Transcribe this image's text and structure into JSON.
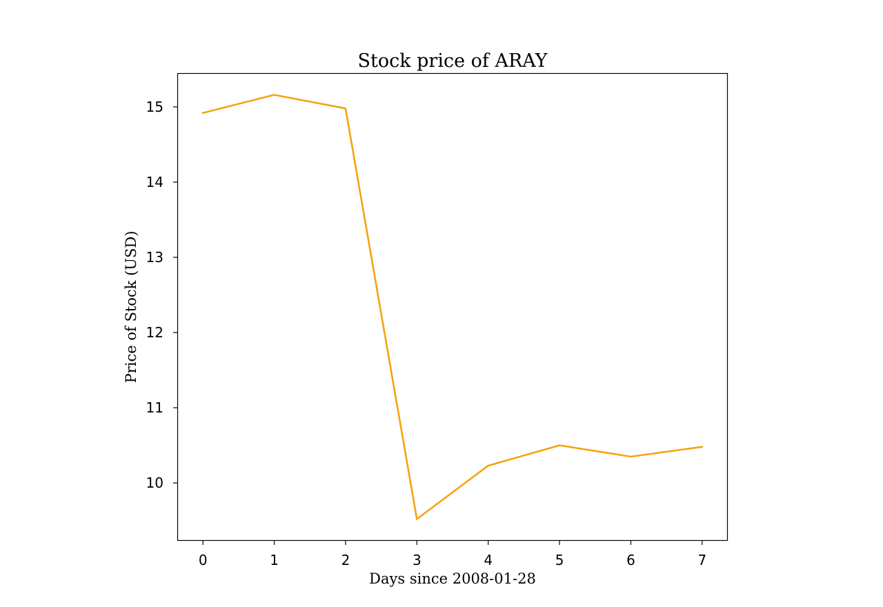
{
  "chart_data": {
    "type": "line",
    "title": "Stock price of ARAY",
    "xlabel": "Days since 2008-01-28",
    "ylabel": "Price of Stock (USD)",
    "x": [
      0,
      1,
      2,
      3,
      4,
      5,
      6,
      7
    ],
    "x_ticks": [
      "0",
      "1",
      "2",
      "3",
      "4",
      "5",
      "6",
      "7"
    ],
    "y_ticks": [
      "10",
      "11",
      "12",
      "13",
      "14",
      "15"
    ],
    "xlim": [
      -0.35,
      7.35
    ],
    "ylim": [
      9.24,
      15.44
    ],
    "series": [
      {
        "values": [
          14.92,
          15.16,
          14.98,
          9.52,
          10.23,
          10.5,
          10.35,
          10.48
        ],
        "color": "#f5a40f"
      }
    ],
    "grid": false,
    "legend": "none"
  }
}
